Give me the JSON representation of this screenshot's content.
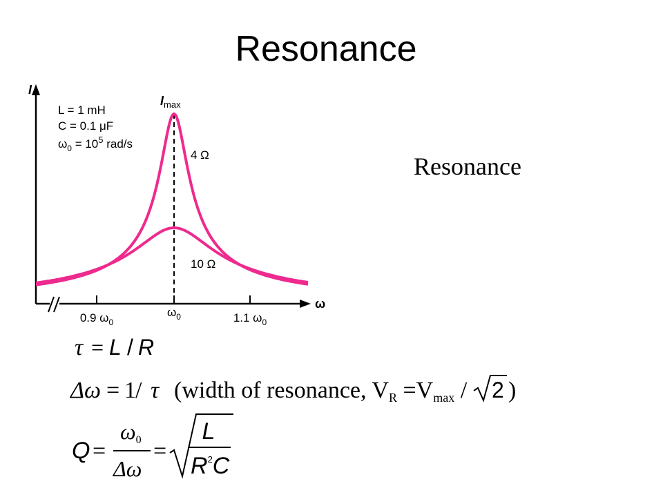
{
  "title": "Resonance",
  "side_label": "Resonance",
  "figure": {
    "y_axis_label": "I",
    "x_axis_label": "ω",
    "param_L": "L = 1 mH",
    "param_C": "C = 0.1 μF",
    "param_w0": [
      "ω",
      "0",
      " = 10",
      "5",
      " rad/s"
    ],
    "peak_label": [
      "I",
      "max"
    ],
    "curve_labels": [
      "4 Ω",
      "10 Ω"
    ],
    "x_tick_labels": [
      [
        "0.9 ω",
        "0"
      ],
      [
        "ω",
        "0"
      ],
      [
        "1.1 ω",
        "0"
      ]
    ]
  },
  "equations": {
    "tau": [
      "τ",
      "=",
      "L",
      "/",
      "R"
    ],
    "width": [
      "Δω",
      "=",
      "1",
      "/",
      "τ",
      "(width of resonance, V",
      "R",
      " =V",
      "max",
      " / ",
      "2",
      ")"
    ],
    "q": [
      "Q",
      "=",
      "ω",
      "0",
      "Δω",
      "=",
      "L",
      "R",
      "2",
      "C"
    ]
  }
}
